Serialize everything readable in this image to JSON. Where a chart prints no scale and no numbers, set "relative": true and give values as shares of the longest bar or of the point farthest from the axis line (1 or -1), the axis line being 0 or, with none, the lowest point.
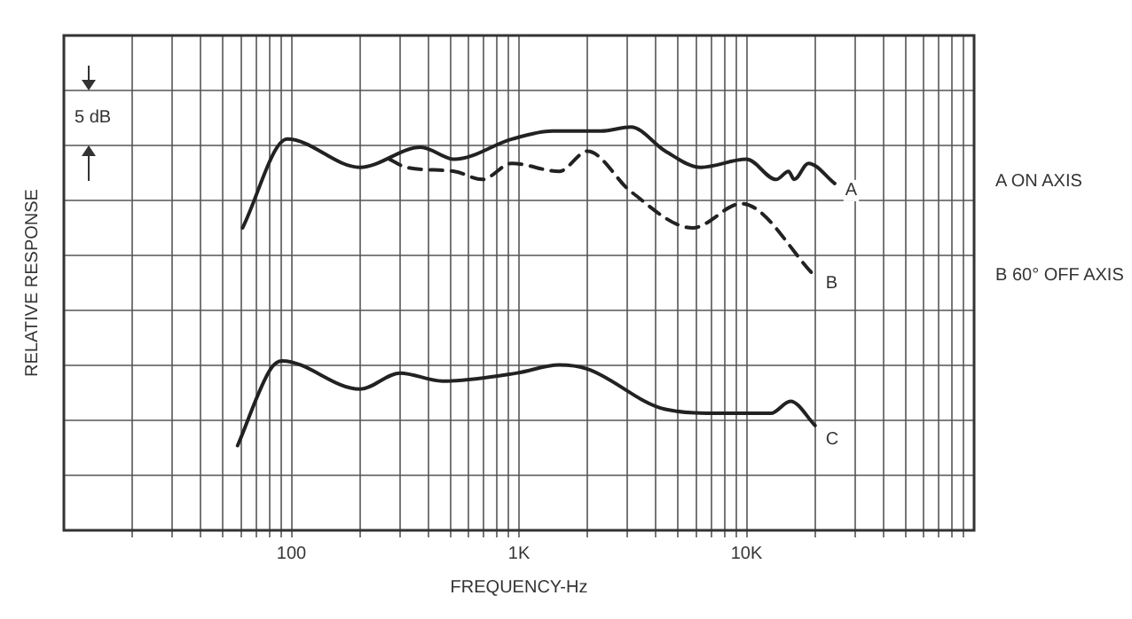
{
  "chart_data": {
    "type": "line",
    "relative": true,
    "xlabel": "FREQUENCY-Hz",
    "ylabel": "RELATIVE RESPONSE",
    "log": "x",
    "grid": true,
    "legend": false,
    "marker": "none",
    "xlim": [
      10,
      100000
    ],
    "xticks": [
      {
        "value": 20,
        "label": null
      },
      {
        "value": 30,
        "label": null
      },
      {
        "value": 40,
        "label": null
      },
      {
        "value": 50,
        "label": null
      },
      {
        "value": 60,
        "label": null
      },
      {
        "value": 70,
        "label": null
      },
      {
        "value": 80,
        "label": null
      },
      {
        "value": 90,
        "label": null
      },
      100,
      {
        "value": 200,
        "label": null
      },
      {
        "value": 300,
        "label": null
      },
      {
        "value": 400,
        "label": null
      },
      {
        "value": 500,
        "label": null
      },
      {
        "value": 600,
        "label": null
      },
      {
        "value": 700,
        "label": null
      },
      {
        "value": 800,
        "label": null
      },
      {
        "value": 900,
        "label": null
      },
      {
        "value": 1000,
        "label": "1K"
      },
      {
        "value": 2000,
        "label": null
      },
      {
        "value": 3000,
        "label": null
      },
      {
        "value": 4000,
        "label": null
      },
      {
        "value": 5000,
        "label": null
      },
      {
        "value": 6000,
        "label": null
      },
      {
        "value": 7000,
        "label": null
      },
      {
        "value": 8000,
        "label": null
      },
      {
        "value": 9000,
        "label": null
      },
      {
        "value": 10000,
        "label": "10K"
      },
      {
        "value": 20000,
        "label": null
      },
      {
        "value": 30000,
        "label": null
      },
      {
        "value": 40000,
        "label": null
      },
      {
        "value": 50000,
        "label": null
      },
      {
        "value": 60000,
        "label": null
      },
      {
        "value": 70000,
        "label": null
      },
      {
        "value": 80000,
        "label": null
      },
      {
        "value": 90000,
        "label": null
      }
    ],
    "series": [
      {
        "name": "A",
        "color": "#222222",
        "line_style": "solid",
        "x": [
          61,
          96,
          200,
          370,
          520,
          930,
          1400,
          2300,
          3100,
          4400,
          6300,
          10000,
          13500,
          15300,
          16200,
          18700,
          24400
        ],
        "values": [
          0.75,
          0.97,
          0.9,
          0.95,
          0.92,
          0.97,
          0.99,
          0.99,
          1,
          0.94,
          0.9,
          0.92,
          0.87,
          0.89,
          0.87,
          0.91,
          0.86
        ]
      },
      {
        "name": "B",
        "color": "#222222",
        "line_style": "dashed",
        "x": [
          270,
          320,
          520,
          690,
          930,
          1500,
          2000,
          3100,
          5800,
          9500,
          20000
        ],
        "values": [
          0.92,
          0.9,
          0.89,
          0.87,
          0.91,
          0.89,
          0.94,
          0.84,
          0.75,
          0.81,
          0.63
        ]
      },
      {
        "name": "C",
        "color": "#222222",
        "line_style": "solid",
        "x": [
          58,
          81,
          91,
          200,
          300,
          460,
          980,
          1500,
          2000,
          4400,
          7900,
          12800,
          15600,
          20000
        ],
        "values": [
          0.21,
          0.4,
          0.42,
          0.35,
          0.39,
          0.37,
          0.39,
          0.41,
          0.4,
          0.3,
          0.29,
          0.29,
          0.32,
          0.26
        ]
      }
    ],
    "annotations": [
      "A ON AXIS",
      "B 60° OFF AXIS",
      "5 dB"
    ]
  }
}
